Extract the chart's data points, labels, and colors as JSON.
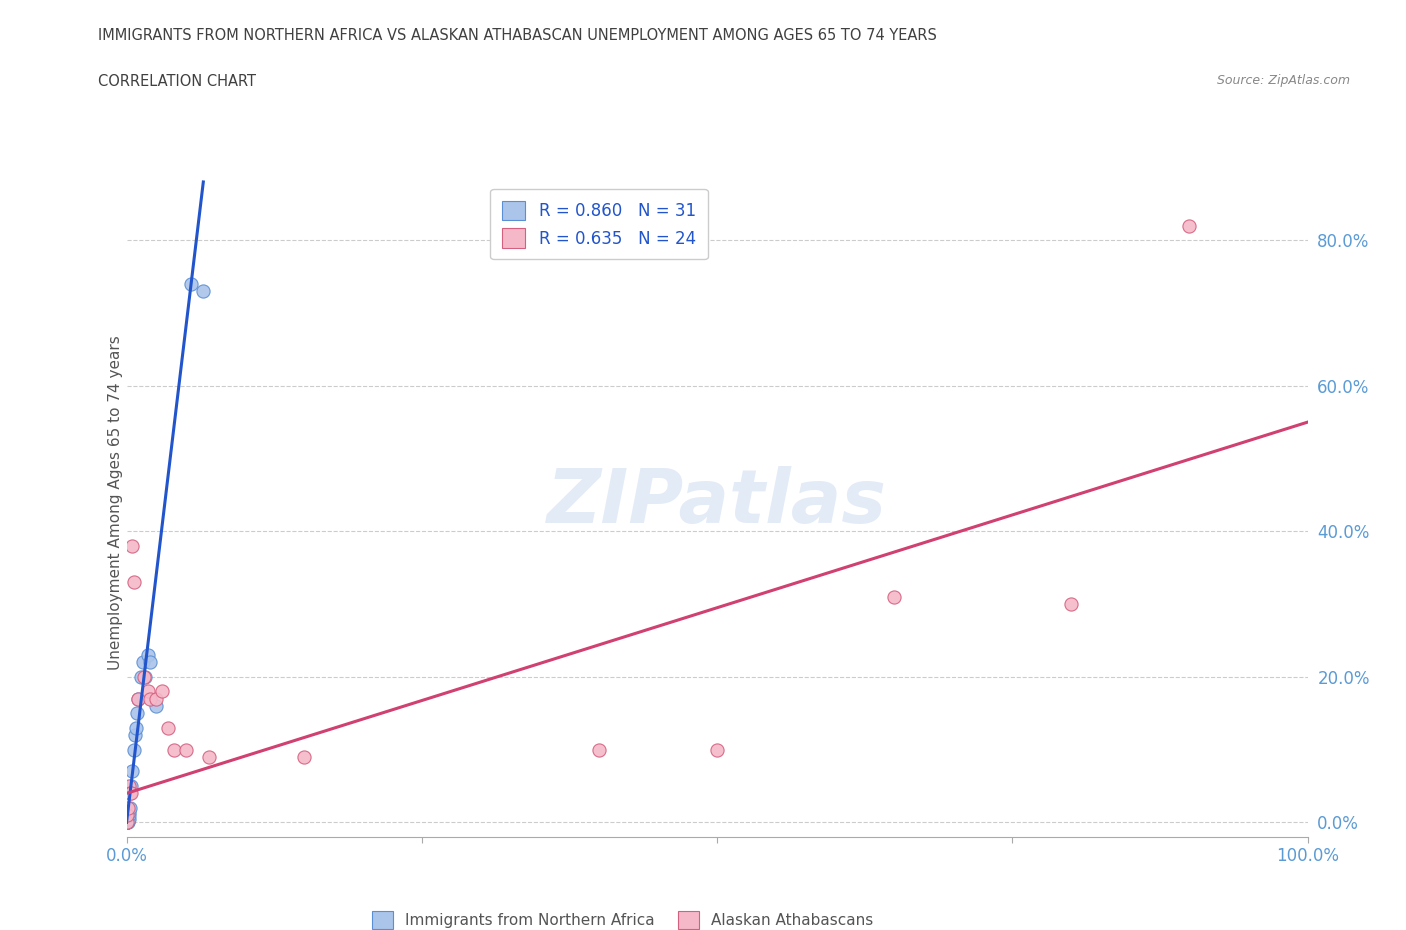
{
  "title_line1": "IMMIGRANTS FROM NORTHERN AFRICA VS ALASKAN ATHABASCAN UNEMPLOYMENT AMONG AGES 65 TO 74 YEARS",
  "title_line2": "CORRELATION CHART",
  "source": "Source: ZipAtlas.com",
  "ylabel": "Unemployment Among Ages 65 to 74 years",
  "watermark": "ZIPatlas",
  "blue_R": 0.86,
  "blue_N": 31,
  "pink_R": 0.635,
  "pink_N": 24,
  "blue_color": "#aac4ea",
  "blue_edge_color": "#5b8fd4",
  "blue_line_color": "#2255cc",
  "pink_color": "#f5b8c8",
  "pink_edge_color": "#d46080",
  "pink_line_color": "#d04070",
  "blue_scatter": [
    [
      0.0,
      0.0
    ],
    [
      0.0,
      0.0
    ],
    [
      0.0,
      0.0
    ],
    [
      0.0,
      0.0
    ],
    [
      0.0,
      0.0
    ],
    [
      0.0,
      0.002
    ],
    [
      0.0,
      0.003
    ],
    [
      0.0,
      0.005
    ],
    [
      0.001,
      0.0
    ],
    [
      0.001,
      0.002
    ],
    [
      0.001,
      0.005
    ],
    [
      0.001,
      0.01
    ],
    [
      0.002,
      0.005
    ],
    [
      0.002,
      0.01
    ],
    [
      0.002,
      0.015
    ],
    [
      0.003,
      0.02
    ],
    [
      0.004,
      0.05
    ],
    [
      0.005,
      0.07
    ],
    [
      0.006,
      0.1
    ],
    [
      0.007,
      0.12
    ],
    [
      0.008,
      0.13
    ],
    [
      0.009,
      0.15
    ],
    [
      0.01,
      0.17
    ],
    [
      0.012,
      0.2
    ],
    [
      0.014,
      0.22
    ],
    [
      0.016,
      0.2
    ],
    [
      0.018,
      0.23
    ],
    [
      0.02,
      0.22
    ],
    [
      0.025,
      0.16
    ],
    [
      0.055,
      0.74
    ],
    [
      0.065,
      0.73
    ]
  ],
  "pink_scatter": [
    [
      0.0,
      0.0
    ],
    [
      0.0,
      0.01
    ],
    [
      0.001,
      0.02
    ],
    [
      0.002,
      0.05
    ],
    [
      0.003,
      0.04
    ],
    [
      0.004,
      0.04
    ],
    [
      0.005,
      0.38
    ],
    [
      0.006,
      0.33
    ],
    [
      0.01,
      0.17
    ],
    [
      0.015,
      0.2
    ],
    [
      0.018,
      0.18
    ],
    [
      0.02,
      0.17
    ],
    [
      0.025,
      0.17
    ],
    [
      0.03,
      0.18
    ],
    [
      0.035,
      0.13
    ],
    [
      0.04,
      0.1
    ],
    [
      0.05,
      0.1
    ],
    [
      0.07,
      0.09
    ],
    [
      0.15,
      0.09
    ],
    [
      0.4,
      0.1
    ],
    [
      0.5,
      0.1
    ],
    [
      0.65,
      0.31
    ],
    [
      0.8,
      0.3
    ],
    [
      0.9,
      0.82
    ]
  ],
  "blue_line": [
    [
      0.0,
      0.0
    ],
    [
      0.065,
      0.88
    ]
  ],
  "pink_line": [
    [
      0.0,
      0.04
    ],
    [
      1.0,
      0.55
    ]
  ],
  "xlim": [
    0.0,
    1.0
  ],
  "ylim": [
    -0.02,
    0.9
  ],
  "yticks": [
    0.0,
    0.2,
    0.4,
    0.6,
    0.8
  ],
  "ytick_labels": [
    "0.0%",
    "20.0%",
    "40.0%",
    "60.0%",
    "80.0%"
  ],
  "xtick_positions": [
    0.0,
    0.25,
    0.5,
    0.75,
    1.0
  ],
  "xtick_labels": [
    "0.0%",
    "",
    "",
    "",
    "100.0%"
  ],
  "grid_color": "#cccccc",
  "bg_color": "#ffffff",
  "title_color": "#404040",
  "axis_label_color": "#5b9bd5",
  "legend_label1": "Immigrants from Northern Africa",
  "legend_label2": "Alaskan Athabascans"
}
